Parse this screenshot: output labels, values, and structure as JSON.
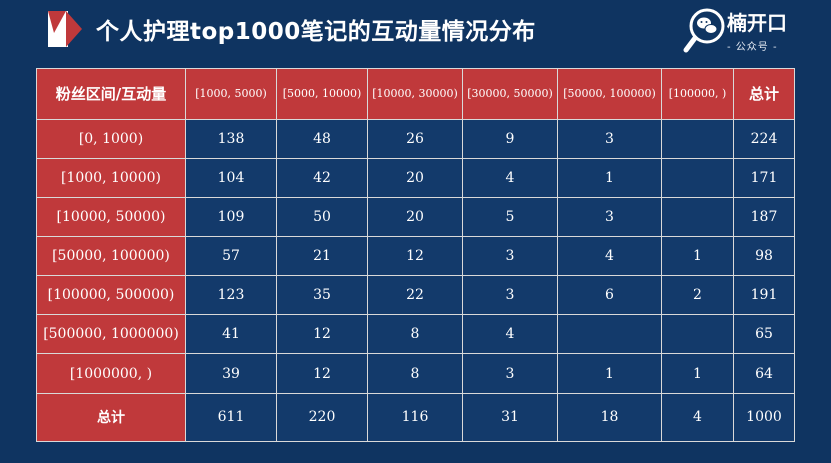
{
  "header": {
    "title": "个人护理top1000笔记的互动量情况分布"
  },
  "brand": {
    "name": "楠开口",
    "subtitle": "- 公众号 -"
  },
  "table": {
    "corner_label": "粉丝区间/互动量",
    "columns": [
      "[1000, 5000)",
      "[5000, 10000)",
      "[10000, 30000)",
      "[30000, 50000)",
      "[50000, 100000)",
      "[100000, )"
    ],
    "total_label": "总计",
    "rows": [
      {
        "label": "[0, 1000)",
        "values": [
          "138",
          "48",
          "26",
          "9",
          "3",
          ""
        ],
        "total": "224"
      },
      {
        "label": "[1000, 10000)",
        "values": [
          "104",
          "42",
          "20",
          "4",
          "1",
          ""
        ],
        "total": "171"
      },
      {
        "label": "[10000, 50000)",
        "values": [
          "109",
          "50",
          "20",
          "5",
          "3",
          ""
        ],
        "total": "187"
      },
      {
        "label": "[50000, 100000)",
        "values": [
          "57",
          "21",
          "12",
          "3",
          "4",
          "1"
        ],
        "total": "98"
      },
      {
        "label": "[100000, 500000)",
        "values": [
          "123",
          "35",
          "22",
          "3",
          "6",
          "2"
        ],
        "total": "191"
      },
      {
        "label": "[500000, 1000000)",
        "values": [
          "41",
          "12",
          "8",
          "4",
          "",
          ""
        ],
        "total": "65"
      },
      {
        "label": "[1000000, )",
        "values": [
          "39",
          "12",
          "8",
          "3",
          "1",
          "1"
        ],
        "total": "64"
      }
    ],
    "totals_row": {
      "label": "总计",
      "values": [
        "611",
        "220",
        "116",
        "31",
        "18",
        "4"
      ],
      "total": "1000"
    }
  },
  "colors": {
    "background": "#0f3461",
    "header_red": "#c0393b",
    "cell_blue": "#133a6b"
  }
}
